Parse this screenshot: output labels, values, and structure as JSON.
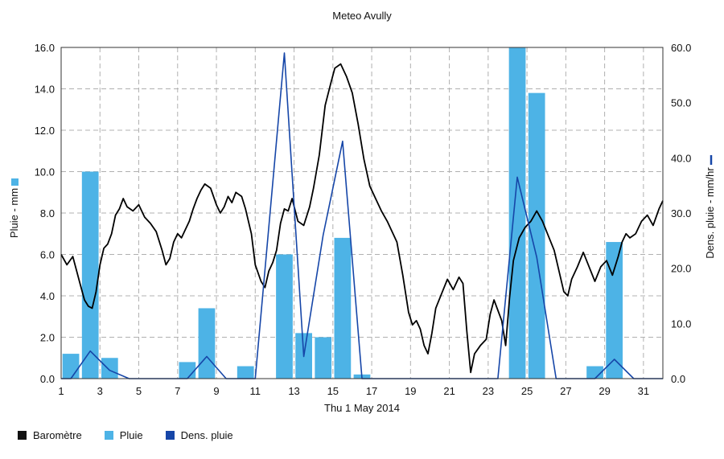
{
  "chart_data": {
    "type": "bar",
    "title": "Meteo  Avully",
    "xlabel": "Thu 1 May 2014",
    "ylabel_left": "Pluie - mm",
    "ylabel_right": "Dens. pluie - mm/hr",
    "x_ticks": [
      "1",
      "3",
      "5",
      "7",
      "9",
      "11",
      "13",
      "15",
      "17",
      "19",
      "21",
      "23",
      "25",
      "27",
      "29",
      "31"
    ],
    "x_range": [
      1,
      32
    ],
    "y_left_ticks": [
      "0.0",
      "2.0",
      "4.0",
      "6.0",
      "8.0",
      "10.0",
      "12.0",
      "14.0",
      "16.0"
    ],
    "y_left_range": [
      0,
      16
    ],
    "y_right_ticks": [
      "0.0",
      "10.0",
      "20.0",
      "30.0",
      "40.0",
      "50.0",
      "60.0"
    ],
    "y_right_range": [
      0,
      60
    ],
    "grid": true,
    "legend_position": "bottom-left",
    "series": [
      {
        "name": "Baromètre",
        "kind": "line",
        "axis": "left",
        "color": "#000000",
        "points": [
          [
            1.0,
            6.0
          ],
          [
            1.3,
            5.5
          ],
          [
            1.6,
            5.9
          ],
          [
            1.8,
            5.2
          ],
          [
            2.0,
            4.5
          ],
          [
            2.2,
            3.8
          ],
          [
            2.4,
            3.5
          ],
          [
            2.6,
            3.4
          ],
          [
            2.8,
            4.2
          ],
          [
            3.0,
            5.5
          ],
          [
            3.2,
            6.3
          ],
          [
            3.4,
            6.5
          ],
          [
            3.6,
            7.0
          ],
          [
            3.8,
            7.9
          ],
          [
            4.0,
            8.2
          ],
          [
            4.2,
            8.7
          ],
          [
            4.4,
            8.3
          ],
          [
            4.7,
            8.1
          ],
          [
            5.0,
            8.4
          ],
          [
            5.3,
            7.8
          ],
          [
            5.6,
            7.5
          ],
          [
            5.9,
            7.1
          ],
          [
            6.2,
            6.2
          ],
          [
            6.4,
            5.5
          ],
          [
            6.6,
            5.8
          ],
          [
            6.8,
            6.6
          ],
          [
            7.0,
            7.0
          ],
          [
            7.2,
            6.8
          ],
          [
            7.4,
            7.2
          ],
          [
            7.6,
            7.6
          ],
          [
            7.8,
            8.2
          ],
          [
            8.0,
            8.7
          ],
          [
            8.2,
            9.1
          ],
          [
            8.4,
            9.4
          ],
          [
            8.7,
            9.2
          ],
          [
            9.0,
            8.4
          ],
          [
            9.2,
            8.0
          ],
          [
            9.4,
            8.3
          ],
          [
            9.6,
            8.8
          ],
          [
            9.8,
            8.5
          ],
          [
            10.0,
            9.0
          ],
          [
            10.3,
            8.8
          ],
          [
            10.5,
            8.2
          ],
          [
            10.8,
            7.0
          ],
          [
            11.0,
            5.5
          ],
          [
            11.3,
            4.7
          ],
          [
            11.5,
            4.4
          ],
          [
            11.7,
            5.2
          ],
          [
            11.9,
            5.6
          ],
          [
            12.1,
            6.2
          ],
          [
            12.3,
            7.5
          ],
          [
            12.5,
            8.2
          ],
          [
            12.7,
            8.1
          ],
          [
            12.9,
            8.7
          ],
          [
            13.2,
            7.6
          ],
          [
            13.5,
            7.4
          ],
          [
            13.8,
            8.3
          ],
          [
            14.0,
            9.2
          ],
          [
            14.3,
            10.8
          ],
          [
            14.6,
            13.2
          ],
          [
            14.9,
            14.3
          ],
          [
            15.1,
            15.0
          ],
          [
            15.4,
            15.2
          ],
          [
            15.7,
            14.6
          ],
          [
            16.0,
            13.8
          ],
          [
            16.3,
            12.3
          ],
          [
            16.6,
            10.6
          ],
          [
            16.9,
            9.3
          ],
          [
            17.2,
            8.7
          ],
          [
            17.5,
            8.1
          ],
          [
            17.8,
            7.6
          ],
          [
            18.1,
            7.0
          ],
          [
            18.3,
            6.6
          ],
          [
            18.6,
            5.0
          ],
          [
            18.9,
            3.2
          ],
          [
            19.1,
            2.6
          ],
          [
            19.3,
            2.8
          ],
          [
            19.5,
            2.4
          ],
          [
            19.7,
            1.6
          ],
          [
            19.9,
            1.2
          ],
          [
            20.1,
            2.2
          ],
          [
            20.3,
            3.4
          ],
          [
            20.6,
            4.1
          ],
          [
            20.9,
            4.8
          ],
          [
            21.2,
            4.3
          ],
          [
            21.5,
            4.9
          ],
          [
            21.7,
            4.6
          ],
          [
            21.9,
            2.3
          ],
          [
            22.1,
            0.3
          ],
          [
            22.3,
            1.2
          ],
          [
            22.6,
            1.6
          ],
          [
            22.9,
            1.9
          ],
          [
            23.1,
            3.1
          ],
          [
            23.3,
            3.8
          ],
          [
            23.5,
            3.3
          ],
          [
            23.7,
            2.8
          ],
          [
            23.9,
            1.6
          ],
          [
            24.1,
            3.9
          ],
          [
            24.3,
            5.7
          ],
          [
            24.6,
            6.8
          ],
          [
            24.9,
            7.3
          ],
          [
            25.2,
            7.6
          ],
          [
            25.5,
            8.1
          ],
          [
            25.8,
            7.6
          ],
          [
            26.1,
            6.9
          ],
          [
            26.4,
            6.2
          ],
          [
            26.7,
            5.0
          ],
          [
            26.9,
            4.2
          ],
          [
            27.1,
            4.0
          ],
          [
            27.3,
            4.8
          ],
          [
            27.6,
            5.4
          ],
          [
            27.9,
            6.1
          ],
          [
            28.2,
            5.4
          ],
          [
            28.5,
            4.7
          ],
          [
            28.8,
            5.4
          ],
          [
            29.1,
            5.7
          ],
          [
            29.4,
            5.0
          ],
          [
            29.7,
            5.9
          ],
          [
            29.9,
            6.6
          ],
          [
            30.1,
            7.0
          ],
          [
            30.3,
            6.8
          ],
          [
            30.6,
            7.0
          ],
          [
            30.9,
            7.6
          ],
          [
            31.2,
            7.9
          ],
          [
            31.5,
            7.4
          ],
          [
            31.8,
            8.2
          ],
          [
            32.0,
            8.6
          ]
        ]
      },
      {
        "name": "Pluie",
        "kind": "bar",
        "axis": "left",
        "color": "#4db3e6",
        "bars": [
          [
            1.5,
            1.2
          ],
          [
            2.5,
            10.0
          ],
          [
            3.5,
            1.0
          ],
          [
            7.5,
            0.8
          ],
          [
            8.5,
            3.4
          ],
          [
            10.5,
            0.6
          ],
          [
            12.5,
            6.0
          ],
          [
            13.5,
            2.2
          ],
          [
            14.5,
            2.0
          ],
          [
            15.5,
            6.8
          ],
          [
            16.5,
            0.2
          ],
          [
            24.5,
            16.0
          ],
          [
            25.5,
            13.8
          ],
          [
            28.5,
            0.6
          ],
          [
            29.5,
            6.6
          ]
        ]
      },
      {
        "name": "Dens. pluie",
        "kind": "line",
        "axis": "right",
        "color": "#1646a8",
        "points": [
          [
            1.0,
            0
          ],
          [
            1.5,
            0
          ],
          [
            2.5,
            5.0
          ],
          [
            3.5,
            1.5
          ],
          [
            4.5,
            0
          ],
          [
            6.5,
            0
          ],
          [
            7.5,
            0
          ],
          [
            8.5,
            4.0
          ],
          [
            9.5,
            0
          ],
          [
            11.0,
            0
          ],
          [
            12.5,
            59.0
          ],
          [
            13.5,
            4.0
          ],
          [
            14.5,
            26.0
          ],
          [
            15.5,
            43.0
          ],
          [
            16.5,
            0
          ],
          [
            19.0,
            0
          ],
          [
            22.0,
            0
          ],
          [
            23.5,
            0
          ],
          [
            24.5,
            36.5
          ],
          [
            25.5,
            22.0
          ],
          [
            26.5,
            0
          ],
          [
            28.5,
            0
          ],
          [
            29.5,
            3.5
          ],
          [
            30.5,
            0
          ],
          [
            32.0,
            0
          ]
        ]
      }
    ]
  },
  "legend": {
    "items": [
      {
        "label": "Baromètre",
        "color": "#111111"
      },
      {
        "label": "Pluie",
        "color": "#4db3e6"
      },
      {
        "label": "Dens. pluie",
        "color": "#1646a8"
      }
    ]
  }
}
